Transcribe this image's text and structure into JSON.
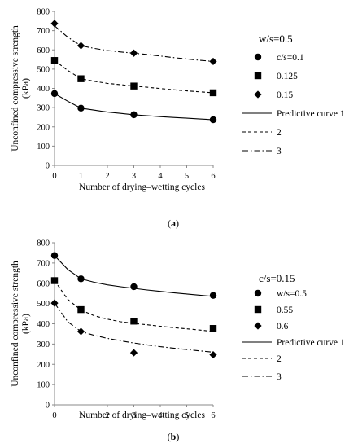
{
  "chart_data": [
    {
      "type": "scatter",
      "panel_label": "(a)",
      "panel_letter": "a",
      "xlabel": "Number of drying–wetting cycles",
      "ylabel": "Unconfined compressive strength (kPa)",
      "ylabel_lines": [
        "Unconfined compressive strength",
        "(kPa)"
      ],
      "xlim": [
        0,
        6
      ],
      "ylim": [
        0,
        800
      ],
      "xticks": [
        "0",
        "1",
        "2",
        "3",
        "4",
        "5",
        "6"
      ],
      "yticks": [
        "0",
        "100",
        "200",
        "300",
        "400",
        "500",
        "600",
        "700",
        "800"
      ],
      "legend_title": "w/s=0.5",
      "legend_placement": "right",
      "grid": false,
      "series": [
        {
          "label": "c/s=0.1",
          "marker": "circle",
          "x": [
            0,
            1,
            3,
            6
          ],
          "y": [
            373,
            297,
            263,
            237
          ]
        },
        {
          "label": "0.125",
          "marker": "square",
          "x": [
            0,
            1,
            3,
            6
          ],
          "y": [
            545,
            450,
            412,
            377
          ]
        },
        {
          "label": "0.15",
          "marker": "diamond",
          "x": [
            0,
            1,
            3,
            6
          ],
          "y": [
            737,
            622,
            583,
            540
          ]
        }
      ],
      "curves": [
        {
          "label": "Predictive curve 1",
          "style": "solid",
          "x": [
            0,
            0.5,
            1,
            1.5,
            2,
            2.5,
            3,
            3.5,
            4,
            4.5,
            5,
            5.5,
            6
          ],
          "y": [
            373,
            333,
            297,
            287,
            277,
            270,
            263,
            258,
            253,
            249,
            245,
            241,
            237
          ]
        },
        {
          "label": "2",
          "style": "dashed",
          "x": [
            0,
            0.5,
            1,
            1.5,
            2,
            2.5,
            3,
            3.5,
            4,
            4.5,
            5,
            5.5,
            6
          ],
          "y": [
            545,
            493,
            450,
            437,
            426,
            419,
            412,
            406,
            399,
            393,
            387,
            382,
            377
          ]
        },
        {
          "label": "3",
          "style": "dashdot",
          "x": [
            0,
            0.5,
            1,
            1.5,
            2,
            2.5,
            3,
            3.5,
            4,
            4.5,
            5,
            5.5,
            6
          ],
          "y": [
            725,
            666,
            622,
            608,
            597,
            589,
            583,
            576,
            568,
            560,
            553,
            546,
            540
          ]
        }
      ]
    },
    {
      "type": "scatter",
      "panel_label": "(b)",
      "panel_letter": "b",
      "xlabel": "Number of drying–wetting cycles",
      "ylabel": "Unconfined compressive strength (kPa)",
      "ylabel_lines": [
        "Unconfined compressive strength",
        "(kPa)"
      ],
      "xlim": [
        0,
        6
      ],
      "ylim": [
        0,
        800
      ],
      "xticks": [
        "0",
        "1",
        "2",
        "3",
        "4",
        "5",
        "6"
      ],
      "yticks": [
        "0",
        "100",
        "200",
        "300",
        "400",
        "500",
        "600",
        "700",
        "800"
      ],
      "legend_title": "c/s=0.15",
      "legend_placement": "right",
      "grid": false,
      "series": [
        {
          "label": "w/s=0.5",
          "marker": "circle",
          "x": [
            0,
            1,
            3,
            6
          ],
          "y": [
            737,
            622,
            583,
            540
          ]
        },
        {
          "label": "0.55",
          "marker": "square",
          "x": [
            0,
            1,
            3,
            6
          ],
          "y": [
            613,
            470,
            413,
            377
          ]
        },
        {
          "label": "0.6",
          "marker": "diamond",
          "x": [
            0,
            1,
            3,
            6
          ],
          "y": [
            502,
            362,
            257,
            247
          ]
        }
      ],
      "curves": [
        {
          "label": "Predictive curve 1",
          "style": "solid",
          "x": [
            0,
            0.5,
            1,
            1.5,
            2,
            2.5,
            3,
            3.5,
            4,
            4.5,
            5,
            5.5,
            6
          ],
          "y": [
            737,
            668,
            622,
            605,
            592,
            583,
            575,
            567,
            560,
            553,
            547,
            541,
            535
          ]
        },
        {
          "label": "2",
          "style": "dashed",
          "x": [
            0,
            0.5,
            1,
            1.5,
            2,
            2.5,
            3,
            3.5,
            4,
            4.5,
            5,
            5.5,
            6
          ],
          "y": [
            613,
            520,
            468,
            440,
            423,
            410,
            402,
            395,
            388,
            381,
            375,
            369,
            362
          ]
        },
        {
          "label": "3",
          "style": "dashdot",
          "x": [
            0,
            0.5,
            1,
            1.5,
            2,
            2.5,
            3,
            3.5,
            4,
            4.5,
            5,
            5.5,
            6
          ],
          "y": [
            502,
            410,
            362,
            343,
            328,
            316,
            305,
            296,
            287,
            280,
            273,
            266,
            260
          ]
        }
      ]
    }
  ]
}
